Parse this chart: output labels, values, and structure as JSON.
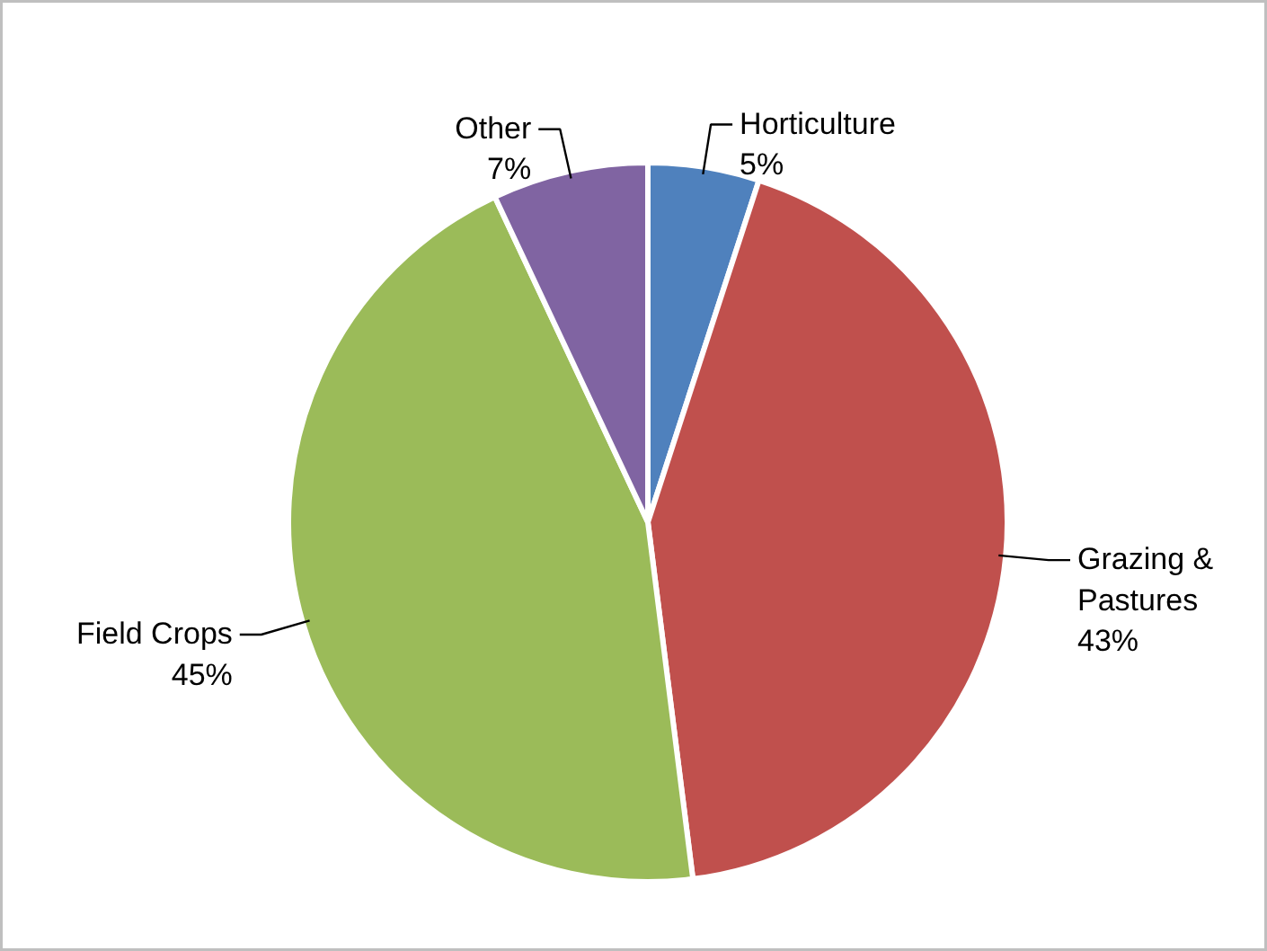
{
  "chart_data": {
    "type": "pie",
    "categories": [
      "Horticulture",
      "Grazing & Pastures",
      "Field Crops",
      "Other"
    ],
    "values": [
      5,
      43,
      45,
      7
    ],
    "colors": [
      "#4f81bd",
      "#c0504d",
      "#9bbb59",
      "#8064a2"
    ],
    "value_labels": [
      "5%",
      "43%",
      "45%",
      "7%"
    ],
    "legend": false
  }
}
